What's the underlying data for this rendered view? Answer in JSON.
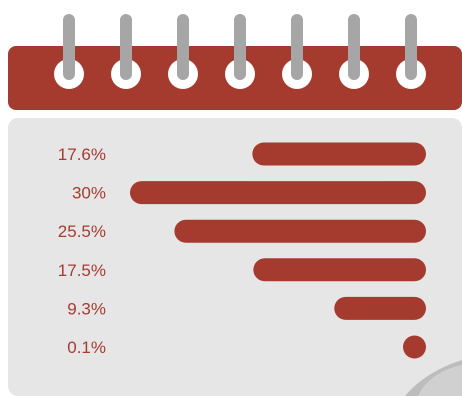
{
  "colors": {
    "accent": "#a53b2e",
    "header": "#a53b2e",
    "page": "#e6e6e6",
    "ring": "#a6a6a6",
    "hole": "#ffffff",
    "label": "#a63b30"
  },
  "icons": {
    "header": "calendar-icon",
    "rings": "binder-ring-icon",
    "corner": "page-curl-icon"
  },
  "chart_data": {
    "type": "bar",
    "orientation": "horizontal",
    "bar_alignment": "right",
    "labels": [
      "17.6%",
      "30%",
      "25.5%",
      "17.5%",
      "9.3%",
      "0.1%"
    ],
    "values": [
      17.6,
      30,
      25.5,
      17.5,
      9.3,
      0.1
    ],
    "unit": "%",
    "xlim": [
      0,
      30
    ],
    "grid": false,
    "legend": "none"
  }
}
